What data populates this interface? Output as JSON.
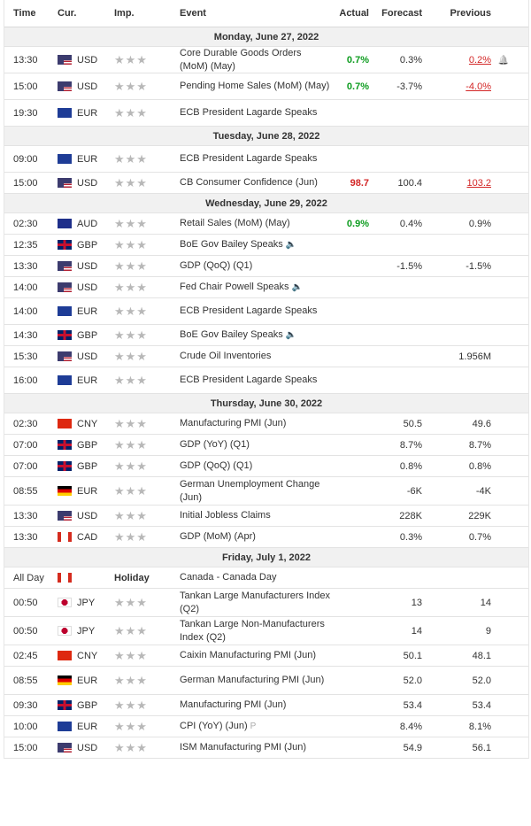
{
  "headers": {
    "time": "Time",
    "cur": "Cur.",
    "imp": "Imp.",
    "event": "Event",
    "actual": "Actual",
    "forecast": "Forecast",
    "previous": "Previous"
  },
  "days": [
    {
      "label": "Monday, June 27, 2022",
      "rows": [
        {
          "time": "13:30",
          "cur": "USD",
          "flag": "us",
          "event": "Core Durable Goods Orders (MoM) (May)",
          "actual": "0.7%",
          "actual_color": "green",
          "forecast": "0.3%",
          "previous": "0.2%",
          "prev_style": "rev",
          "alert": true,
          "h": 30
        },
        {
          "time": "15:00",
          "cur": "USD",
          "flag": "us",
          "event": "Pending Home Sales (MoM) (May)",
          "actual": "0.7%",
          "actual_color": "green",
          "forecast": "-3.7%",
          "previous": "-4.0%",
          "prev_style": "rev",
          "h": 30
        },
        {
          "time": "19:30",
          "cur": "EUR",
          "flag": "eu",
          "event": "ECB President Lagarde Speaks",
          "actual": "",
          "forecast": "",
          "previous": "",
          "h": 30
        }
      ]
    },
    {
      "label": "Tuesday, June 28, 2022",
      "rows": [
        {
          "time": "09:00",
          "cur": "EUR",
          "flag": "eu",
          "event": "ECB President Lagarde Speaks",
          "actual": "",
          "forecast": "",
          "previous": "",
          "h": 30
        },
        {
          "time": "15:00",
          "cur": "USD",
          "flag": "us",
          "event": "CB Consumer Confidence (Jun)",
          "actual": "98.7",
          "actual_color": "red",
          "forecast": "100.4",
          "previous": "103.2",
          "prev_style": "rev",
          "h": 24
        }
      ]
    },
    {
      "label": "Wednesday, June 29, 2022",
      "rows": [
        {
          "time": "02:30",
          "cur": "AUD",
          "flag": "au",
          "event": "Retail Sales (MoM) (May)",
          "actual": "0.9%",
          "actual_color": "green",
          "forecast": "0.4%",
          "previous": "0.9%",
          "h": 24
        },
        {
          "time": "12:35",
          "cur": "GBP",
          "flag": "gb",
          "event": "BoE Gov Bailey Speaks",
          "speaker": true,
          "actual": "",
          "forecast": "",
          "previous": "",
          "h": 24
        },
        {
          "time": "13:30",
          "cur": "USD",
          "flag": "us",
          "event": "GDP (QoQ) (Q1)",
          "actual": "",
          "forecast": "-1.5%",
          "previous": "-1.5%",
          "h": 24
        },
        {
          "time": "14:00",
          "cur": "USD",
          "flag": "us",
          "event": "Fed Chair Powell Speaks",
          "speaker": true,
          "actual": "",
          "forecast": "",
          "previous": "",
          "h": 24
        },
        {
          "time": "14:00",
          "cur": "EUR",
          "flag": "eu",
          "event": "ECB President Lagarde Speaks",
          "actual": "",
          "forecast": "",
          "previous": "",
          "h": 30
        },
        {
          "time": "14:30",
          "cur": "GBP",
          "flag": "gb",
          "event": "BoE Gov Bailey Speaks",
          "speaker": true,
          "actual": "",
          "forecast": "",
          "previous": "",
          "h": 24
        },
        {
          "time": "15:30",
          "cur": "USD",
          "flag": "us",
          "event": "Crude Oil Inventories",
          "actual": "",
          "forecast": "",
          "previous": "1.956M",
          "h": 24
        },
        {
          "time": "16:00",
          "cur": "EUR",
          "flag": "eu",
          "event": "ECB President Lagarde Speaks",
          "actual": "",
          "forecast": "",
          "previous": "",
          "h": 30
        }
      ]
    },
    {
      "label": "Thursday, June 30, 2022",
      "rows": [
        {
          "time": "02:30",
          "cur": "CNY",
          "flag": "cn",
          "event": "Manufacturing PMI (Jun)",
          "actual": "",
          "forecast": "50.5",
          "previous": "49.6",
          "h": 24
        },
        {
          "time": "07:00",
          "cur": "GBP",
          "flag": "gb",
          "event": "GDP (YoY) (Q1)",
          "actual": "",
          "forecast": "8.7%",
          "previous": "8.7%",
          "h": 24
        },
        {
          "time": "07:00",
          "cur": "GBP",
          "flag": "gb",
          "event": "GDP (QoQ) (Q1)",
          "actual": "",
          "forecast": "0.8%",
          "previous": "0.8%",
          "h": 24
        },
        {
          "time": "08:55",
          "cur": "EUR",
          "flag": "de",
          "event": "German Unemployment Change (Jun)",
          "actual": "",
          "forecast": "-6K",
          "previous": "-4K",
          "h": 32
        },
        {
          "time": "13:30",
          "cur": "USD",
          "flag": "us",
          "event": "Initial Jobless Claims",
          "actual": "",
          "forecast": "228K",
          "previous": "229K",
          "h": 24
        },
        {
          "time": "13:30",
          "cur": "CAD",
          "flag": "ca",
          "event": "GDP (MoM) (Apr)",
          "actual": "",
          "forecast": "0.3%",
          "previous": "0.7%",
          "h": 24
        }
      ]
    },
    {
      "label": "Friday, July 1, 2022",
      "rows": [
        {
          "time": "All Day",
          "cur": "",
          "flag": "ca",
          "holiday": "Holiday",
          "event": "Canada - Canada Day",
          "actual": "",
          "forecast": "",
          "previous": "",
          "h": 24
        },
        {
          "time": "00:50",
          "cur": "JPY",
          "flag": "jp",
          "event": "Tankan Large Manufacturers Index (Q2)",
          "actual": "",
          "forecast": "13",
          "previous": "14",
          "h": 32
        },
        {
          "time": "00:50",
          "cur": "JPY",
          "flag": "jp",
          "event": "Tankan Large Non-Manufacturers Index (Q2)",
          "actual": "",
          "forecast": "14",
          "previous": "9",
          "h": 32
        },
        {
          "time": "02:45",
          "cur": "CNY",
          "flag": "cn",
          "event": "Caixin Manufacturing PMI (Jun)",
          "actual": "",
          "forecast": "50.1",
          "previous": "48.1",
          "h": 24
        },
        {
          "time": "08:55",
          "cur": "EUR",
          "flag": "de",
          "event": "German Manufacturing PMI (Jun)",
          "actual": "",
          "forecast": "52.0",
          "previous": "52.0",
          "h": 32
        },
        {
          "time": "09:30",
          "cur": "GBP",
          "flag": "gb",
          "event": "Manufacturing PMI (Jun)",
          "actual": "",
          "forecast": "53.4",
          "previous": "53.4",
          "h": 24
        },
        {
          "time": "10:00",
          "cur": "EUR",
          "flag": "eu",
          "event": "CPI (YoY) (Jun)",
          "prelim": "P",
          "actual": "",
          "forecast": "8.4%",
          "previous": "8.1%",
          "h": 24
        },
        {
          "time": "15:00",
          "cur": "USD",
          "flag": "us",
          "event": "ISM Manufacturing PMI (Jun)",
          "actual": "",
          "forecast": "54.9",
          "previous": "56.1",
          "h": 24
        }
      ]
    }
  ],
  "icons": {
    "importance": "star-icon",
    "speaker": "speaker-icon",
    "alert": "bell-icon",
    "prelim": "preliminary-icon"
  },
  "colors": {
    "green": "#0d9c1f",
    "red": "#d32626",
    "day_bg": "#f1f1f1"
  }
}
